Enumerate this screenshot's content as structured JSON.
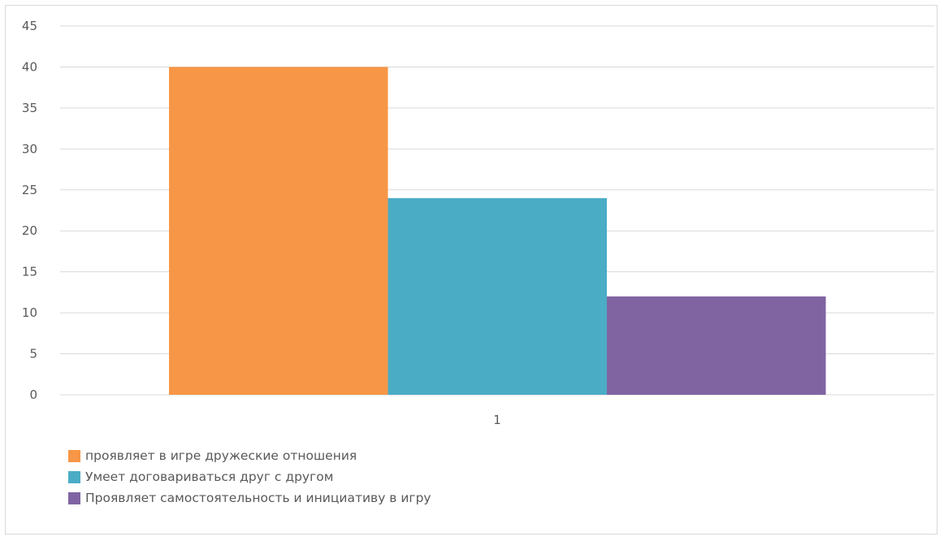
{
  "chart_data": {
    "type": "bar",
    "categories": [
      "1"
    ],
    "series": [
      {
        "name": "проявляет в игре дружеские отношения",
        "values": [
          40
        ],
        "color": "#F79646"
      },
      {
        "name": "Умеет договариваться друг с другом",
        "values": [
          24
        ],
        "color": "#4BACC6"
      },
      {
        "name": "Проявляет самостоятельность и инициативу в игру",
        "values": [
          12
        ],
        "color": "#8064A2"
      }
    ],
    "ylim": [
      0,
      45
    ],
    "yticks": [
      "0",
      "5",
      "10",
      "15",
      "20",
      "25",
      "30",
      "35",
      "40",
      "45"
    ],
    "grid": true,
    "legend_position": "bottom-left",
    "gridline_color": "#D9D9D9"
  }
}
